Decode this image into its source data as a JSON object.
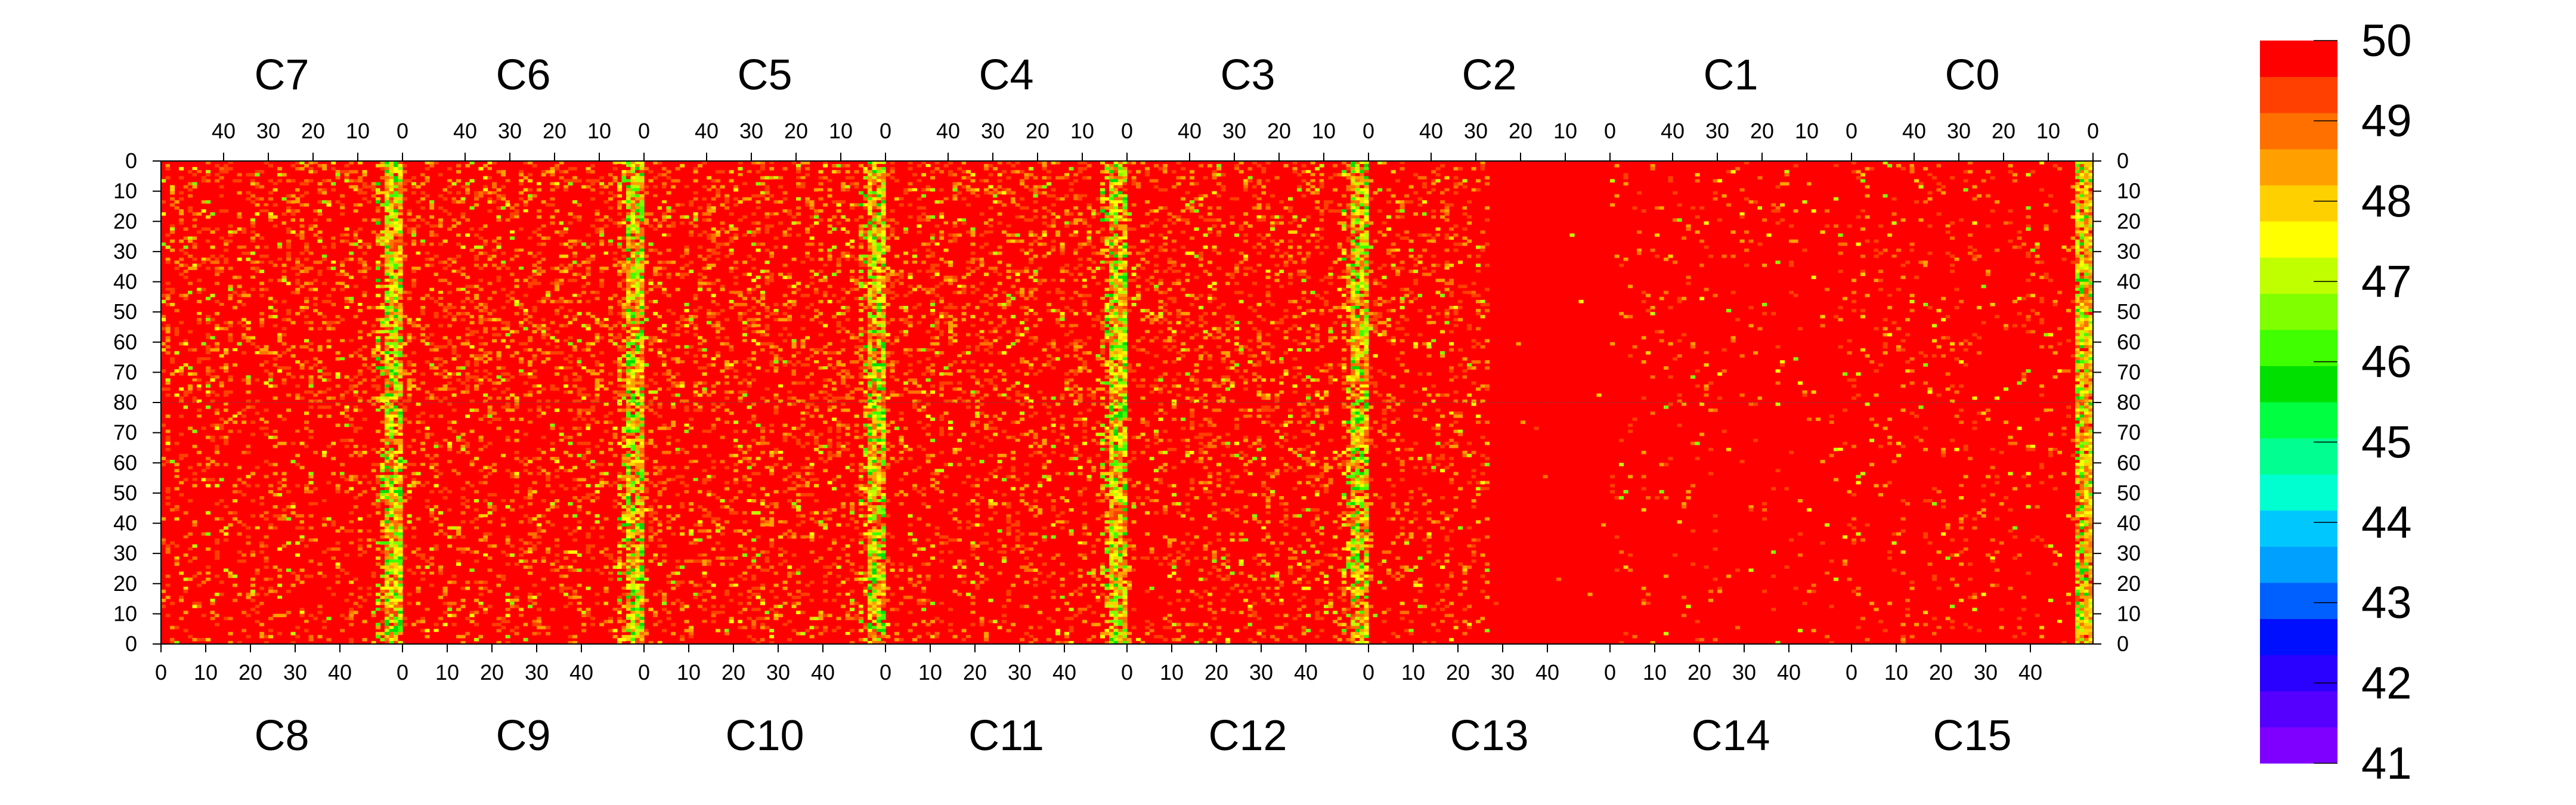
{
  "chart_data": {
    "type": "heatmap",
    "title": "",
    "xlabel": "",
    "ylabel": "",
    "chips_top": [
      "C7",
      "C6",
      "C5",
      "C4",
      "C3",
      "C2",
      "C1",
      "C0"
    ],
    "chips_bottom": [
      "C8",
      "C9",
      "C10",
      "C11",
      "C12",
      "C13",
      "C14",
      "C15"
    ],
    "columns_per_chip": 54,
    "rows_per_half": 80,
    "x_ticks_top": [
      "40",
      "30",
      "20",
      "10",
      "0"
    ],
    "x_ticks_bottom": [
      "0",
      "10",
      "20",
      "30",
      "40"
    ],
    "y_ticks_top_half": [
      "0",
      "10",
      "20",
      "30",
      "40",
      "50",
      "60",
      "70",
      "80"
    ],
    "y_ticks_bottom_half": [
      "70",
      "60",
      "50",
      "40",
      "30",
      "20",
      "10",
      "0"
    ],
    "z_range": [
      41,
      50
    ],
    "colorbar": {
      "ticks": [
        "50",
        "49",
        "48",
        "47",
        "46",
        "45",
        "44",
        "43",
        "42",
        "41"
      ],
      "colors": [
        "#7f00ff",
        "#5500ff",
        "#2a00ff",
        "#0010ff",
        "#0060ff",
        "#00a0ff",
        "#00c8ff",
        "#00ffd0",
        "#00ff90",
        "#00ff40",
        "#00e000",
        "#40ff00",
        "#80ff00",
        "#c0ff00",
        "#ffff00",
        "#ffd000",
        "#ffa000",
        "#ff7000",
        "#ff4000",
        "#ff0000"
      ]
    },
    "grid": false,
    "legend_position": "right",
    "pattern_note_values": {
      "background_value": 50,
      "hot_column_value": 46.5,
      "typical_noise_value": 48.5
    },
    "hot_columns": [
      {
        "chip_pair": "C7/C8",
        "edge_column": "right"
      },
      {
        "chip_pair": "C6/C9",
        "edge_column": "right"
      },
      {
        "chip_pair": "C5/C10",
        "edge_column": "right"
      },
      {
        "chip_pair": "C4/C11",
        "edge_column": "right"
      },
      {
        "chip_pair": "C3/C12",
        "edge_column": "right"
      },
      {
        "chip_pair": "C0/C15",
        "edge_column": "right"
      }
    ],
    "quiet_chips": [
      "C2/C13 right part",
      "C1/C14"
    ]
  }
}
